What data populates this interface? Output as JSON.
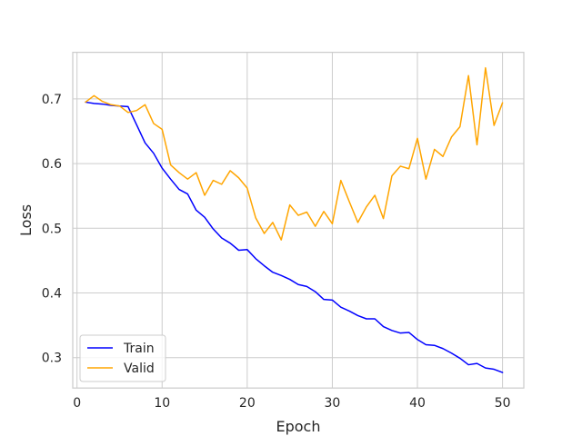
{
  "chart_data": {
    "type": "line",
    "title": "",
    "xlabel": "Epoch",
    "ylabel": "Loss",
    "xlim": [
      -0.5,
      52.5
    ],
    "ylim": [
      0.253,
      0.772
    ],
    "xticks": [
      0,
      10,
      20,
      30,
      40,
      50
    ],
    "xtick_labels": [
      "0",
      "10",
      "20",
      "30",
      "40",
      "50"
    ],
    "yticks": [
      0.3,
      0.4,
      0.5,
      0.6,
      0.7
    ],
    "ytick_labels": [
      "0.3",
      "0.4",
      "0.5",
      "0.6",
      "0.7"
    ],
    "grid": true,
    "legend_position": "lower-left",
    "x": [
      1,
      2,
      3,
      4,
      5,
      6,
      7,
      8,
      9,
      10,
      11,
      12,
      13,
      14,
      15,
      16,
      17,
      18,
      19,
      20,
      21,
      22,
      23,
      24,
      25,
      26,
      27,
      28,
      29,
      30,
      31,
      32,
      33,
      34,
      35,
      36,
      37,
      38,
      39,
      40,
      41,
      42,
      43,
      44,
      45,
      46,
      47,
      48,
      49,
      50
    ],
    "series": [
      {
        "name": "Train",
        "color": "#0000ff",
        "values": [
          0.695,
          0.693,
          0.692,
          0.69,
          0.689,
          0.688,
          0.66,
          0.632,
          0.616,
          0.593,
          0.576,
          0.56,
          0.553,
          0.528,
          0.517,
          0.499,
          0.485,
          0.477,
          0.466,
          0.467,
          0.453,
          0.442,
          0.432,
          0.427,
          0.421,
          0.413,
          0.41,
          0.402,
          0.39,
          0.389,
          0.378,
          0.372,
          0.365,
          0.36,
          0.36,
          0.348,
          0.342,
          0.338,
          0.339,
          0.328,
          0.32,
          0.319,
          0.314,
          0.307,
          0.299,
          0.289,
          0.291,
          0.284,
          0.282,
          0.277
        ]
      },
      {
        "name": "Valid",
        "color": "#ffa500",
        "values": [
          0.695,
          0.705,
          0.696,
          0.691,
          0.689,
          0.679,
          0.682,
          0.691,
          0.662,
          0.653,
          0.598,
          0.586,
          0.576,
          0.586,
          0.551,
          0.574,
          0.568,
          0.589,
          0.578,
          0.562,
          0.516,
          0.492,
          0.509,
          0.482,
          0.536,
          0.52,
          0.525,
          0.503,
          0.526,
          0.507,
          0.574,
          0.541,
          0.509,
          0.533,
          0.551,
          0.515,
          0.581,
          0.596,
          0.592,
          0.639,
          0.576,
          0.622,
          0.611,
          0.641,
          0.657,
          0.736,
          0.629,
          0.748,
          0.659,
          0.694
        ]
      }
    ]
  }
}
